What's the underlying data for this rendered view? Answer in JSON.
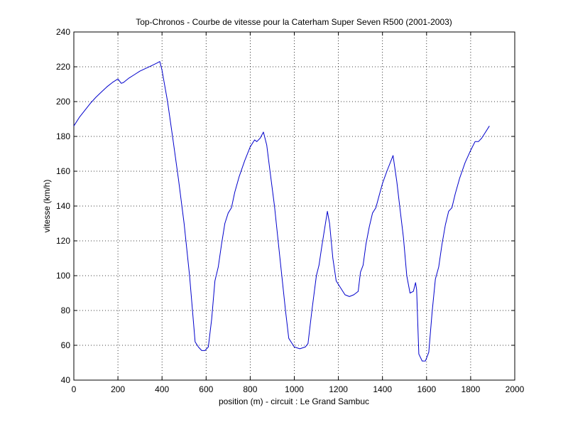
{
  "chart_data": {
    "type": "line",
    "title": "Top-Chronos - Courbe de vitesse pour la Caterham Super Seven R500 (2001-2003)",
    "xlabel": "position (m) - circuit : Le Grand Sambuc",
    "ylabel": "vitesse (km/h)",
    "xlim": [
      0,
      2000
    ],
    "ylim": [
      40,
      240
    ],
    "xticks": [
      0,
      200,
      400,
      600,
      800,
      1000,
      1200,
      1400,
      1600,
      1800,
      2000
    ],
    "yticks": [
      40,
      60,
      80,
      100,
      120,
      140,
      160,
      180,
      200,
      220,
      240
    ],
    "grid": true,
    "series": [
      {
        "color": "#0000cc",
        "points": [
          [
            0,
            186
          ],
          [
            25,
            191
          ],
          [
            50,
            195
          ],
          [
            75,
            199
          ],
          [
            100,
            202.5
          ],
          [
            125,
            205.5
          ],
          [
            150,
            208.5
          ],
          [
            175,
            211
          ],
          [
            200,
            213
          ],
          [
            215,
            210.5
          ],
          [
            225,
            211
          ],
          [
            250,
            213.5
          ],
          [
            275,
            215.5
          ],
          [
            300,
            217.5
          ],
          [
            325,
            219
          ],
          [
            350,
            220.5
          ],
          [
            375,
            222
          ],
          [
            390,
            223
          ],
          [
            400,
            218
          ],
          [
            425,
            200
          ],
          [
            450,
            178
          ],
          [
            475,
            155
          ],
          [
            500,
            130
          ],
          [
            525,
            100
          ],
          [
            550,
            62
          ],
          [
            565,
            59
          ],
          [
            580,
            57
          ],
          [
            595,
            57
          ],
          [
            610,
            59
          ],
          [
            625,
            75
          ],
          [
            640,
            97
          ],
          [
            655,
            105
          ],
          [
            670,
            118
          ],
          [
            685,
            130
          ],
          [
            700,
            136
          ],
          [
            715,
            139
          ],
          [
            730,
            148
          ],
          [
            750,
            157
          ],
          [
            775,
            166
          ],
          [
            800,
            174
          ],
          [
            820,
            178
          ],
          [
            830,
            177
          ],
          [
            845,
            179
          ],
          [
            860,
            182.5
          ],
          [
            875,
            175
          ],
          [
            890,
            160
          ],
          [
            910,
            140
          ],
          [
            935,
            110
          ],
          [
            960,
            80
          ],
          [
            975,
            64
          ],
          [
            1000,
            59
          ],
          [
            1025,
            58
          ],
          [
            1050,
            59
          ],
          [
            1062,
            61
          ],
          [
            1080,
            80
          ],
          [
            1100,
            100
          ],
          [
            1112,
            106
          ],
          [
            1125,
            117
          ],
          [
            1140,
            129
          ],
          [
            1150,
            137
          ],
          [
            1160,
            130
          ],
          [
            1175,
            110
          ],
          [
            1190,
            97
          ],
          [
            1210,
            93
          ],
          [
            1230,
            89
          ],
          [
            1250,
            88
          ],
          [
            1270,
            89
          ],
          [
            1290,
            91
          ],
          [
            1300,
            102
          ],
          [
            1312,
            106
          ],
          [
            1325,
            118
          ],
          [
            1340,
            128
          ],
          [
            1355,
            136
          ],
          [
            1370,
            139
          ],
          [
            1385,
            146
          ],
          [
            1400,
            153
          ],
          [
            1420,
            160
          ],
          [
            1448,
            169
          ],
          [
            1465,
            154
          ],
          [
            1480,
            138
          ],
          [
            1495,
            122
          ],
          [
            1510,
            100
          ],
          [
            1525,
            90
          ],
          [
            1540,
            91
          ],
          [
            1550,
            96
          ],
          [
            1555,
            92
          ],
          [
            1565,
            55
          ],
          [
            1580,
            51
          ],
          [
            1595,
            51
          ],
          [
            1610,
            56
          ],
          [
            1625,
            79
          ],
          [
            1640,
            98
          ],
          [
            1655,
            105
          ],
          [
            1670,
            118
          ],
          [
            1685,
            129
          ],
          [
            1700,
            137
          ],
          [
            1715,
            139
          ],
          [
            1730,
            147
          ],
          [
            1750,
            156
          ],
          [
            1775,
            165
          ],
          [
            1800,
            172
          ],
          [
            1820,
            177
          ],
          [
            1835,
            177
          ],
          [
            1850,
            179
          ],
          [
            1865,
            182
          ],
          [
            1885,
            186
          ]
        ]
      }
    ]
  }
}
